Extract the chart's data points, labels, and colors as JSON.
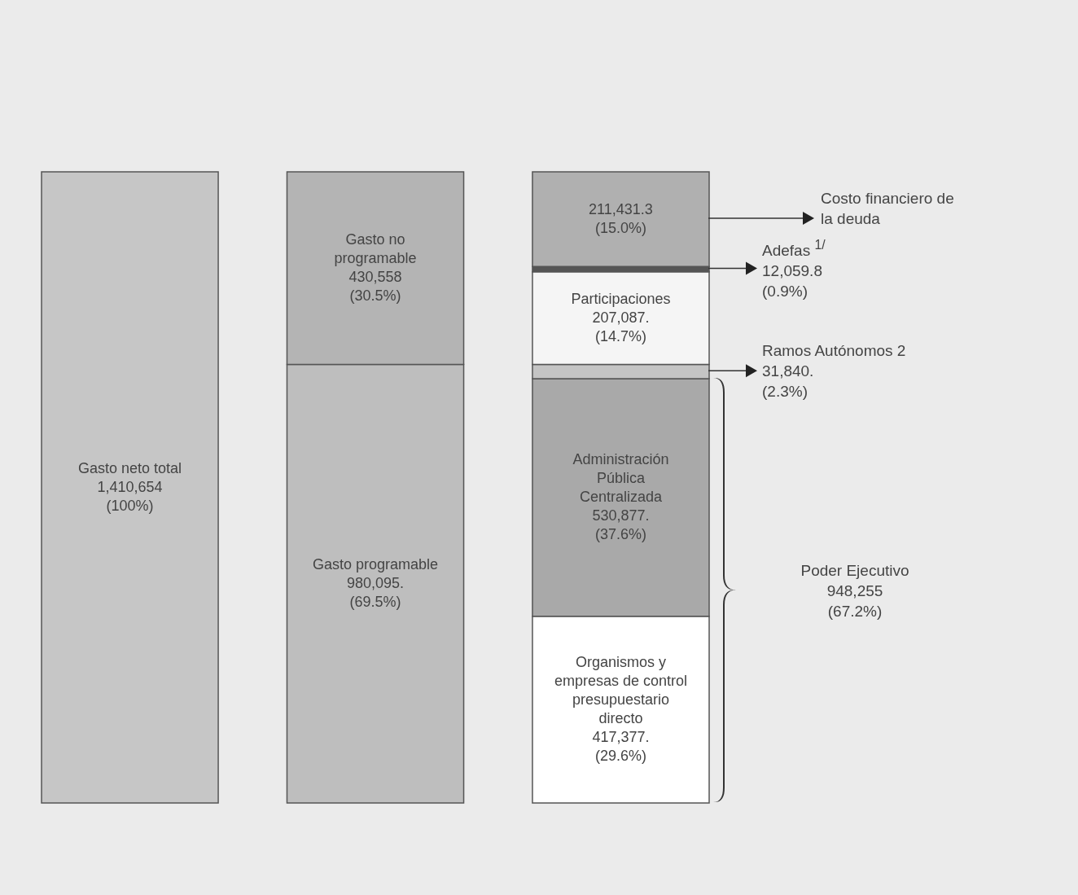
{
  "chart_data": {
    "type": "bar",
    "stacked": true,
    "categories": [
      null,
      null,
      null
    ],
    "series": [
      {
        "name": "Gasto neto total",
        "color": "#c6c6c6",
        "values": [
          1410654,
          null,
          null
        ],
        "value_labels": [
          "1,410,654 (100%)",
          null,
          null
        ]
      },
      {
        "name": "Gasto programable",
        "color": "#bebebe",
        "values": [
          null,
          980095,
          null
        ],
        "value_labels": [
          null,
          "980,095. (69.5%)",
          null
        ]
      },
      {
        "name": "Gasto no programable",
        "color": "#b4b4b4",
        "values": [
          null,
          430558,
          null
        ],
        "value_labels": [
          null,
          "430,558 (30.5%)",
          null
        ]
      },
      {
        "name": "Organismos y empresas de control presupuestario directo",
        "color": "#ffffff",
        "values": [
          null,
          null,
          417377
        ],
        "value_labels": [
          null,
          null,
          "417,377. (29.6%)"
        ]
      },
      {
        "name": "Administración Pública Centralizada",
        "color": "#a9a9a9",
        "values": [
          null,
          null,
          530877
        ],
        "value_labels": [
          null,
          null,
          "530,877. (37.6%)"
        ]
      },
      {
        "name": "Ramos Autónomos 2",
        "color": "#c4c4c4",
        "values": [
          null,
          null,
          31840
        ],
        "value_labels": [
          null,
          null,
          "31,840. (2.3%)"
        ]
      },
      {
        "name": "Participaciones",
        "color": "#f5f5f5",
        "values": [
          null,
          null,
          207087
        ],
        "value_labels": [
          null,
          null,
          "207,087. (14.7%)"
        ]
      },
      {
        "name": "Adefas $^{1/}$",
        "color": "#555555",
        "values": [
          null,
          null,
          12059.8
        ],
        "value_labels": [
          null,
          null,
          "12,059.8 (0.9%)"
        ]
      },
      {
        "name": "Costo financiero de la deuda",
        "color": "#b0b0b0",
        "values": [
          null,
          null,
          211431.3
        ],
        "value_labels": [
          null,
          null,
          "211,431.3 (15.0%)"
        ]
      }
    ],
    "annotations": [
      "Poder Ejecutivo 948,255 (67.2%)"
    ]
  }
}
